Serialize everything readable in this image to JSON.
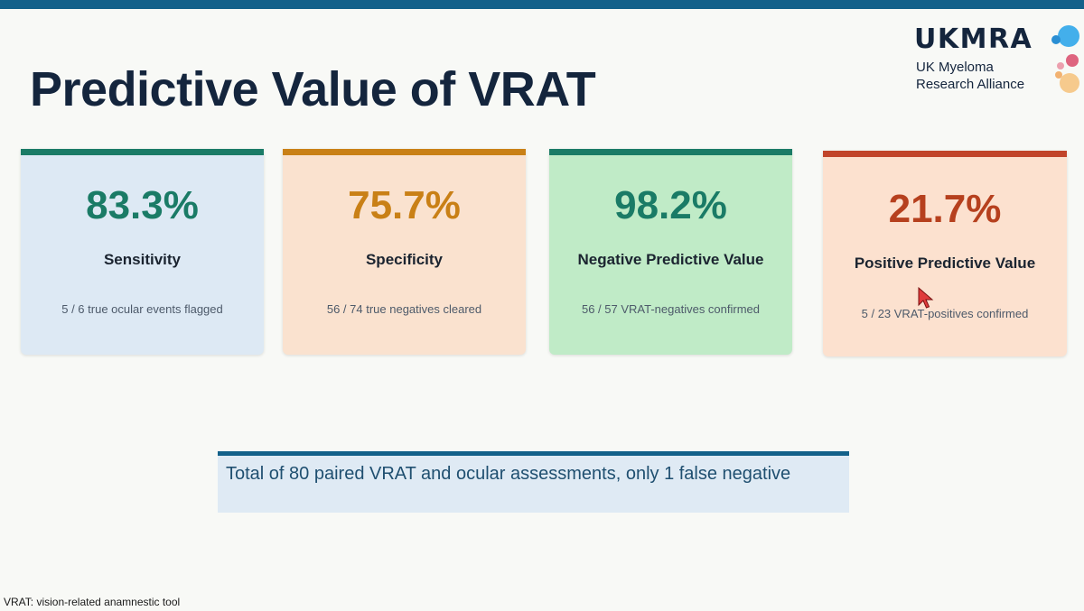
{
  "slide": {
    "title": "Predictive Value of VRAT",
    "footnote": "VRAT: vision-related anamnestic tool"
  },
  "logo": {
    "wordmark": "UKMRA",
    "line1": "UK Myeloma",
    "line2": "Research Alliance",
    "dot_colors": [
      "#2fa6ea",
      "#d94a6a",
      "#f5b96a"
    ]
  },
  "cards": [
    {
      "value": "83.3%",
      "label": "Sensitivity",
      "detail": "5 / 6 true ocular events flagged",
      "accent_color": "#1a7b66"
    },
    {
      "value": "75.7%",
      "label": "Specificity",
      "detail": "56 / 74 true negatives cleared",
      "accent_color": "#c98016"
    },
    {
      "value": "98.2%",
      "label": "Negative Predictive Value",
      "detail": "56 / 57 VRAT-negatives confirmed",
      "accent_color": "#1a7b66"
    },
    {
      "value": "21.7%",
      "label": "Positive Predictive Value",
      "detail": "5 / 23 VRAT-positives confirmed",
      "accent_color": "#c1442a"
    }
  ],
  "summary": {
    "text": "Total of 80 paired VRAT and ocular assessments, only 1 false negative"
  },
  "colors": {
    "top_bar": "#13618a",
    "title": "#14253d",
    "background": "#f8f9f6"
  }
}
